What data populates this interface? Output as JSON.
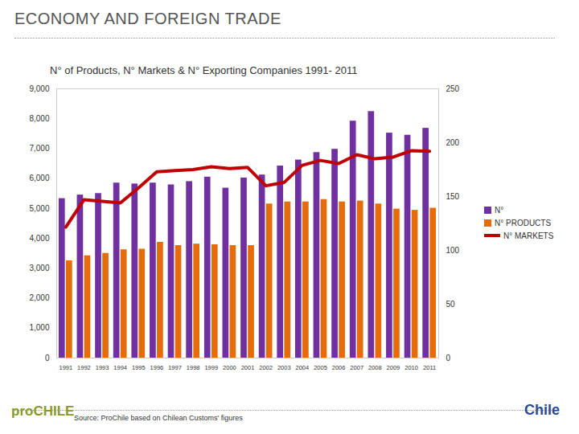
{
  "chart_data": {
    "type": "bar",
    "header": "ECONOMY AND FOREIGN TRADE",
    "title": "N° of Products, N° Markets & N° Exporting Companies 1991- 2011",
    "source": "Source: ProChile based on Chilean Customs' figures",
    "logo_left": "proCHILE",
    "logo_right": "Chile",
    "categories": [
      "1991",
      "1992",
      "1993",
      "1994",
      "1995",
      "1996",
      "1997",
      "1998",
      "1999",
      "2000",
      "2001",
      "2002",
      "2003",
      "2004",
      "2005",
      "2006",
      "2007",
      "2008",
      "2009",
      "2010",
      "2011"
    ],
    "series": [
      {
        "name": "N°",
        "type": "bar",
        "color": "#7030a0",
        "values": [
          5330,
          5450,
          5500,
          5850,
          5820,
          5850,
          5790,
          5900,
          6050,
          5680,
          6020,
          6120,
          6420,
          6620,
          6870,
          6980,
          7920,
          8240,
          7520,
          7450,
          7680
        ]
      },
      {
        "name": "N° PRODUCTS",
        "type": "bar",
        "color": "#e46c0a",
        "values": [
          3250,
          3420,
          3500,
          3620,
          3640,
          3870,
          3760,
          3810,
          3790,
          3760,
          3760,
          5150,
          5220,
          5220,
          5300,
          5220,
          5250,
          5150,
          4980,
          4940,
          5010
        ]
      },
      {
        "name": "N° MARKETS",
        "type": "line",
        "axis": "y2",
        "color": "#c00000",
        "values": [
          121.6,
          147,
          145.5,
          144,
          158,
          173,
          174,
          175,
          177.6,
          176,
          177,
          160,
          163,
          179,
          183.5,
          180.6,
          188.8,
          185,
          186.6,
          192.5,
          192
        ]
      }
    ],
    "ylim": [
      0,
      9000
    ],
    "yticks": [
      0,
      {
        "value": 1000,
        "label": "1,000"
      },
      {
        "value": 2000,
        "label": "2,000"
      },
      {
        "value": 3000,
        "label": "3,000"
      },
      {
        "value": 4000,
        "label": "4,000"
      },
      {
        "value": 5000,
        "label": "5,000"
      },
      {
        "value": 6000,
        "label": "6,000"
      },
      {
        "value": 7000,
        "label": "7,000"
      },
      {
        "value": 8000,
        "label": "8,000"
      },
      {
        "value": 9000,
        "label": "9,000"
      }
    ],
    "y2lim": [
      0,
      250
    ],
    "y2ticks": [
      0,
      50,
      100,
      150,
      200,
      250
    ],
    "grid": false,
    "legend": "right"
  }
}
